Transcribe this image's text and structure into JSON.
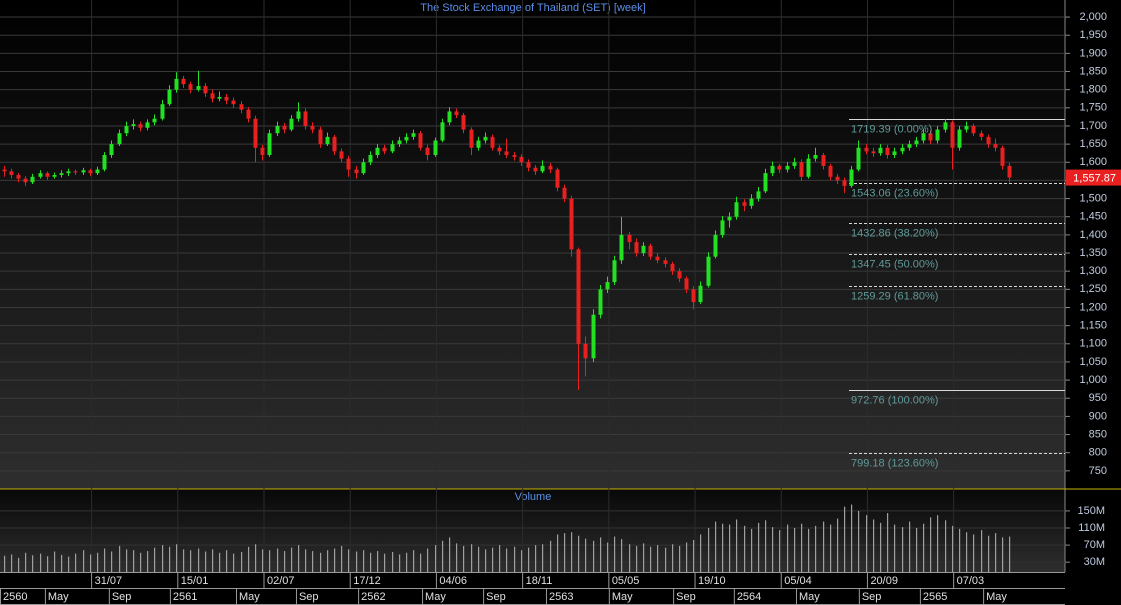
{
  "chart_data": {
    "type": "candlestick",
    "title": "The Stock Exchange of Thailand (SET) [week]",
    "up_color": "#22e022",
    "down_color": "#e82020",
    "xlim": [
      0,
      296.5
    ],
    "xticks": [
      {
        "value": 25.5,
        "label": "31/07"
      },
      {
        "value": 49.5,
        "label": "15/01"
      },
      {
        "value": 73.5,
        "label": "02/07"
      },
      {
        "value": 97.5,
        "label": "17/12"
      },
      {
        "value": 121.5,
        "label": "04/06"
      },
      {
        "value": 145.5,
        "label": "18/11"
      },
      {
        "value": 169.5,
        "label": "05/05"
      },
      {
        "value": 193.5,
        "label": "19/10"
      },
      {
        "value": 217.5,
        "label": "05/04"
      },
      {
        "value": 241.5,
        "label": "20/09"
      },
      {
        "value": 265.5,
        "label": "07/03"
      }
    ],
    "xticks_secondary": [
      {
        "value": 0,
        "label": "2560"
      },
      {
        "value": 12.5,
        "label": "May"
      },
      {
        "value": 30.3,
        "label": "Sep"
      },
      {
        "value": 47.3,
        "label": "2561"
      },
      {
        "value": 65.7,
        "label": "May"
      },
      {
        "value": 82.4,
        "label": "Sep"
      },
      {
        "value": 99.7,
        "label": "2562"
      },
      {
        "value": 117.5,
        "label": "May"
      },
      {
        "value": 134.5,
        "label": "Sep"
      },
      {
        "value": 152,
        "label": "2563"
      },
      {
        "value": 169.5,
        "label": "May"
      },
      {
        "value": 187.4,
        "label": "Sep"
      },
      {
        "value": 204.3,
        "label": "2564"
      },
      {
        "value": 221.6,
        "label": "May"
      },
      {
        "value": 239.1,
        "label": "Sep"
      },
      {
        "value": 256.1,
        "label": "2565"
      },
      {
        "value": 273.7,
        "label": "May"
      }
    ],
    "ylim": [
      700,
      2047
    ],
    "yticks": [
      {
        "value": 2000,
        "label": "2,000"
      },
      {
        "value": 1950,
        "label": "1,950"
      },
      {
        "value": 1900,
        "label": "1,900"
      },
      {
        "value": 1850,
        "label": "1,850"
      },
      {
        "value": 1800,
        "label": "1,800"
      },
      {
        "value": 1750,
        "label": "1,750"
      },
      {
        "value": 1700,
        "label": "1,700"
      },
      {
        "value": 1650,
        "label": "1,650"
      },
      {
        "value": 1600,
        "label": "1,600"
      },
      {
        "value": 1550,
        "label": "1,550"
      },
      {
        "value": 1500,
        "label": "1,500"
      },
      {
        "value": 1450,
        "label": "1,450"
      },
      {
        "value": 1400,
        "label": "1,400"
      },
      {
        "value": 1350,
        "label": "1,350"
      },
      {
        "value": 1300,
        "label": "1,300"
      },
      {
        "value": 1250,
        "label": "1,250"
      },
      {
        "value": 1200,
        "label": "1,200"
      },
      {
        "value": 1150,
        "label": "1,150"
      },
      {
        "value": 1100,
        "label": "1,100"
      },
      {
        "value": 1050,
        "label": "1,050"
      },
      {
        "value": 1000,
        "label": "1,000"
      },
      950,
      900,
      850,
      800,
      750
    ],
    "grid": true,
    "last_price": {
      "value": 1557.87,
      "label": "1,557.87",
      "color": "#e82020"
    },
    "fibonacci": [
      {
        "value": 1719.39,
        "label": "1719.39 (0.00%)",
        "style": "solid"
      },
      {
        "value": 1543.06,
        "label": "1543.06 (23.60%)",
        "style": "dashed"
      },
      {
        "value": 1432.86,
        "label": "1432.86 (38.20%)",
        "style": "dashed"
      },
      {
        "value": 1347.45,
        "label": "1347.45 (50.00%)",
        "style": "dashed"
      },
      {
        "value": 1259.29,
        "label": "1259.29 (61.80%)",
        "style": "dashed"
      },
      {
        "value": 972.76,
        "label": "972.76 (100.00%)",
        "style": "solid"
      },
      {
        "value": 799.18,
        "label": "799.18 (123.60%)",
        "style": "dashed"
      }
    ],
    "x": [
      1,
      3,
      5,
      7,
      9,
      11,
      13,
      15,
      17,
      19,
      21,
      23,
      25,
      27,
      29,
      31,
      33,
      35,
      37,
      39,
      41,
      43,
      45,
      47,
      49,
      51,
      53,
      55,
      57,
      59,
      61,
      63,
      65,
      67,
      69,
      71,
      73,
      75,
      77,
      79,
      81,
      83,
      85,
      87,
      89,
      91,
      93,
      95,
      97,
      99,
      101,
      103,
      105,
      107,
      109,
      111,
      113,
      115,
      117,
      119,
      121,
      123,
      125,
      127,
      129,
      131,
      133,
      135,
      137,
      139,
      141,
      143,
      145,
      147,
      149,
      151,
      153,
      155,
      157,
      159,
      161,
      163,
      165,
      167,
      169,
      171,
      173,
      175,
      177,
      179,
      181,
      183,
      185,
      187,
      189,
      191,
      193,
      195,
      197,
      199,
      201,
      203,
      205,
      207,
      209,
      211,
      213,
      215,
      217,
      219,
      221,
      223,
      225,
      227,
      229,
      231,
      233,
      235,
      237,
      239,
      241,
      243,
      245,
      247,
      249,
      251,
      253,
      255,
      257,
      259,
      261,
      263,
      265,
      267,
      269,
      271,
      273,
      275,
      277,
      279,
      281
    ],
    "ohlc": [
      [
        1580,
        1590,
        1560,
        1575
      ],
      [
        1575,
        1582,
        1555,
        1565
      ],
      [
        1565,
        1570,
        1545,
        1555
      ],
      [
        1555,
        1562,
        1535,
        1545
      ],
      [
        1545,
        1568,
        1540,
        1560
      ],
      [
        1560,
        1578,
        1555,
        1570
      ],
      [
        1570,
        1575,
        1552,
        1560
      ],
      [
        1560,
        1572,
        1555,
        1565
      ],
      [
        1565,
        1578,
        1558,
        1570
      ],
      [
        1570,
        1582,
        1562,
        1575
      ],
      [
        1575,
        1580,
        1565,
        1572
      ],
      [
        1572,
        1585,
        1565,
        1578
      ],
      [
        1578,
        1582,
        1562,
        1570
      ],
      [
        1570,
        1588,
        1565,
        1580
      ],
      [
        1580,
        1628,
        1575,
        1620
      ],
      [
        1620,
        1660,
        1612,
        1650
      ],
      [
        1650,
        1690,
        1645,
        1680
      ],
      [
        1680,
        1712,
        1672,
        1700
      ],
      [
        1700,
        1718,
        1690,
        1705
      ],
      [
        1705,
        1712,
        1685,
        1695
      ],
      [
        1695,
        1718,
        1688,
        1710
      ],
      [
        1710,
        1732,
        1702,
        1720
      ],
      [
        1720,
        1772,
        1715,
        1760
      ],
      [
        1760,
        1812,
        1755,
        1800
      ],
      [
        1800,
        1848,
        1792,
        1830
      ],
      [
        1830,
        1838,
        1805,
        1815
      ],
      [
        1815,
        1822,
        1790,
        1800
      ],
      [
        1800,
        1852,
        1795,
        1810
      ],
      [
        1810,
        1818,
        1780,
        1790
      ],
      [
        1790,
        1800,
        1765,
        1775
      ],
      [
        1775,
        1795,
        1768,
        1780
      ],
      [
        1780,
        1788,
        1760,
        1770
      ],
      [
        1770,
        1778,
        1750,
        1760
      ],
      [
        1760,
        1768,
        1735,
        1745
      ],
      [
        1745,
        1752,
        1710,
        1720
      ],
      [
        1720,
        1728,
        1600,
        1640
      ],
      [
        1640,
        1648,
        1605,
        1620
      ],
      [
        1620,
        1690,
        1615,
        1680
      ],
      [
        1680,
        1712,
        1672,
        1700
      ],
      [
        1700,
        1708,
        1680,
        1690
      ],
      [
        1690,
        1730,
        1685,
        1720
      ],
      [
        1720,
        1765,
        1712,
        1740
      ],
      [
        1740,
        1748,
        1690,
        1700
      ],
      [
        1700,
        1710,
        1680,
        1690
      ],
      [
        1690,
        1698,
        1640,
        1650
      ],
      [
        1650,
        1682,
        1645,
        1670
      ],
      [
        1670,
        1675,
        1620,
        1630
      ],
      [
        1630,
        1638,
        1600,
        1610
      ],
      [
        1610,
        1618,
        1560,
        1580
      ],
      [
        1580,
        1590,
        1555,
        1570
      ],
      [
        1570,
        1610,
        1565,
        1600
      ],
      [
        1600,
        1630,
        1592,
        1620
      ],
      [
        1620,
        1650,
        1612,
        1640
      ],
      [
        1640,
        1648,
        1622,
        1630
      ],
      [
        1630,
        1660,
        1625,
        1650
      ],
      [
        1650,
        1670,
        1642,
        1660
      ],
      [
        1660,
        1680,
        1652,
        1670
      ],
      [
        1670,
        1690,
        1662,
        1680
      ],
      [
        1680,
        1686,
        1632,
        1640
      ],
      [
        1640,
        1648,
        1605,
        1620
      ],
      [
        1620,
        1668,
        1615,
        1660
      ],
      [
        1660,
        1720,
        1655,
        1710
      ],
      [
        1710,
        1752,
        1702,
        1740
      ],
      [
        1740,
        1748,
        1722,
        1730
      ],
      [
        1730,
        1736,
        1680,
        1690
      ],
      [
        1690,
        1696,
        1620,
        1640
      ],
      [
        1640,
        1670,
        1632,
        1660
      ],
      [
        1660,
        1682,
        1652,
        1670
      ],
      [
        1670,
        1676,
        1632,
        1640
      ],
      [
        1640,
        1648,
        1620,
        1630
      ],
      [
        1630,
        1665,
        1612,
        1620
      ],
      [
        1620,
        1628,
        1605,
        1615
      ],
      [
        1615,
        1622,
        1590,
        1600
      ],
      [
        1600,
        1608,
        1575,
        1585
      ],
      [
        1585,
        1592,
        1565,
        1575
      ],
      [
        1575,
        1605,
        1570,
        1590
      ],
      [
        1590,
        1598,
        1570,
        1580
      ],
      [
        1580,
        1585,
        1520,
        1530
      ],
      [
        1530,
        1538,
        1490,
        1500
      ],
      [
        1500,
        1508,
        1340,
        1360
      ],
      [
        1360,
        1365,
        972.76,
        1100
      ],
      [
        1100,
        1120,
        1010,
        1060
      ],
      [
        1060,
        1195,
        1050,
        1180
      ],
      [
        1180,
        1262,
        1170,
        1250
      ],
      [
        1250,
        1285,
        1240,
        1270
      ],
      [
        1270,
        1342,
        1262,
        1330
      ],
      [
        1330,
        1450,
        1320,
        1400
      ],
      [
        1400,
        1408,
        1360,
        1380
      ],
      [
        1380,
        1390,
        1340,
        1350
      ],
      [
        1350,
        1380,
        1342,
        1370
      ],
      [
        1370,
        1376,
        1332,
        1340
      ],
      [
        1340,
        1350,
        1322,
        1330
      ],
      [
        1330,
        1338,
        1310,
        1320
      ],
      [
        1320,
        1326,
        1290,
        1300
      ],
      [
        1300,
        1308,
        1270,
        1280
      ],
      [
        1280,
        1286,
        1240,
        1250
      ],
      [
        1250,
        1258,
        1195,
        1215
      ],
      [
        1215,
        1272,
        1210,
        1260
      ],
      [
        1260,
        1352,
        1255,
        1340
      ],
      [
        1340,
        1412,
        1335,
        1400
      ],
      [
        1400,
        1452,
        1392,
        1440
      ],
      [
        1440,
        1462,
        1420,
        1450
      ],
      [
        1450,
        1505,
        1442,
        1490
      ],
      [
        1490,
        1498,
        1465,
        1480
      ],
      [
        1480,
        1512,
        1472,
        1500
      ],
      [
        1500,
        1532,
        1492,
        1520
      ],
      [
        1520,
        1582,
        1515,
        1570
      ],
      [
        1570,
        1602,
        1562,
        1590
      ],
      [
        1590,
        1596,
        1570,
        1580
      ],
      [
        1580,
        1600,
        1572,
        1590
      ],
      [
        1590,
        1612,
        1582,
        1600
      ],
      [
        1600,
        1608,
        1548,
        1560
      ],
      [
        1560,
        1622,
        1555,
        1610
      ],
      [
        1610,
        1640,
        1602,
        1620
      ],
      [
        1620,
        1626,
        1580,
        1590
      ],
      [
        1590,
        1596,
        1550,
        1560
      ],
      [
        1560,
        1568,
        1540,
        1550
      ],
      [
        1550,
        1558,
        1515,
        1535
      ],
      [
        1535,
        1590,
        1530,
        1580
      ],
      [
        1580,
        1660,
        1575,
        1640
      ],
      [
        1640,
        1650,
        1622,
        1630
      ],
      [
        1630,
        1640,
        1615,
        1625
      ],
      [
        1625,
        1650,
        1618,
        1640
      ],
      [
        1640,
        1648,
        1610,
        1620
      ],
      [
        1620,
        1640,
        1612,
        1630
      ],
      [
        1630,
        1650,
        1622,
        1640
      ],
      [
        1640,
        1660,
        1632,
        1650
      ],
      [
        1650,
        1670,
        1642,
        1660
      ],
      [
        1660,
        1692,
        1652,
        1680
      ],
      [
        1680,
        1688,
        1650,
        1660
      ],
      [
        1660,
        1700,
        1652,
        1690
      ],
      [
        1690,
        1719.39,
        1682,
        1710
      ],
      [
        1710,
        1715,
        1580,
        1640
      ],
      [
        1640,
        1700,
        1632,
        1690
      ],
      [
        1690,
        1712,
        1682,
        1700
      ],
      [
        1700,
        1706,
        1672,
        1680
      ],
      [
        1680,
        1688,
        1660,
        1670
      ],
      [
        1670,
        1676,
        1640,
        1650
      ],
      [
        1650,
        1665,
        1630,
        1640
      ],
      [
        1640,
        1646,
        1580,
        1590
      ],
      [
        1590,
        1598,
        1545,
        1557.87
      ]
    ],
    "volume": {
      "title": "Volume",
      "color": "#a0a0a0",
      "ylim": [
        7,
        199
      ],
      "yticks": [
        {
          "value": 150,
          "label": "150M"
        },
        {
          "value": 110,
          "label": "110M"
        },
        {
          "value": 70,
          "label": "70M"
        },
        {
          "value": 30,
          "label": "30M"
        }
      ],
      "values": [
        45,
        48,
        40,
        52,
        46,
        50,
        44,
        55,
        47,
        43,
        50,
        58,
        48,
        52,
        62,
        55,
        68,
        60,
        58,
        52,
        56,
        64,
        70,
        66,
        72,
        60,
        58,
        62,
        55,
        60,
        52,
        58,
        50,
        54,
        66,
        72,
        60,
        58,
        62,
        56,
        64,
        70,
        60,
        56,
        52,
        58,
        62,
        68,
        60,
        55,
        58,
        52,
        56,
        50,
        54,
        48,
        52,
        58,
        50,
        62,
        70,
        80,
        88,
        74,
        68,
        72,
        66,
        60,
        64,
        70,
        62,
        66,
        58,
        64,
        70,
        72,
        80,
        95,
        98,
        100,
        92,
        85,
        80,
        88,
        76,
        90,
        84,
        72,
        68,
        74,
        66,
        70,
        64,
        72,
        68,
        76,
        82,
        95,
        110,
        125,
        120,
        118,
        130,
        115,
        108,
        122,
        128,
        112,
        105,
        118,
        110,
        120,
        108,
        115,
        125,
        118,
        132,
        160,
        165,
        150,
        140,
        130,
        122,
        145,
        118,
        112,
        125,
        110,
        120,
        135,
        140,
        128,
        115,
        108,
        100,
        95,
        105,
        92,
        98,
        88,
        90
      ]
    }
  }
}
